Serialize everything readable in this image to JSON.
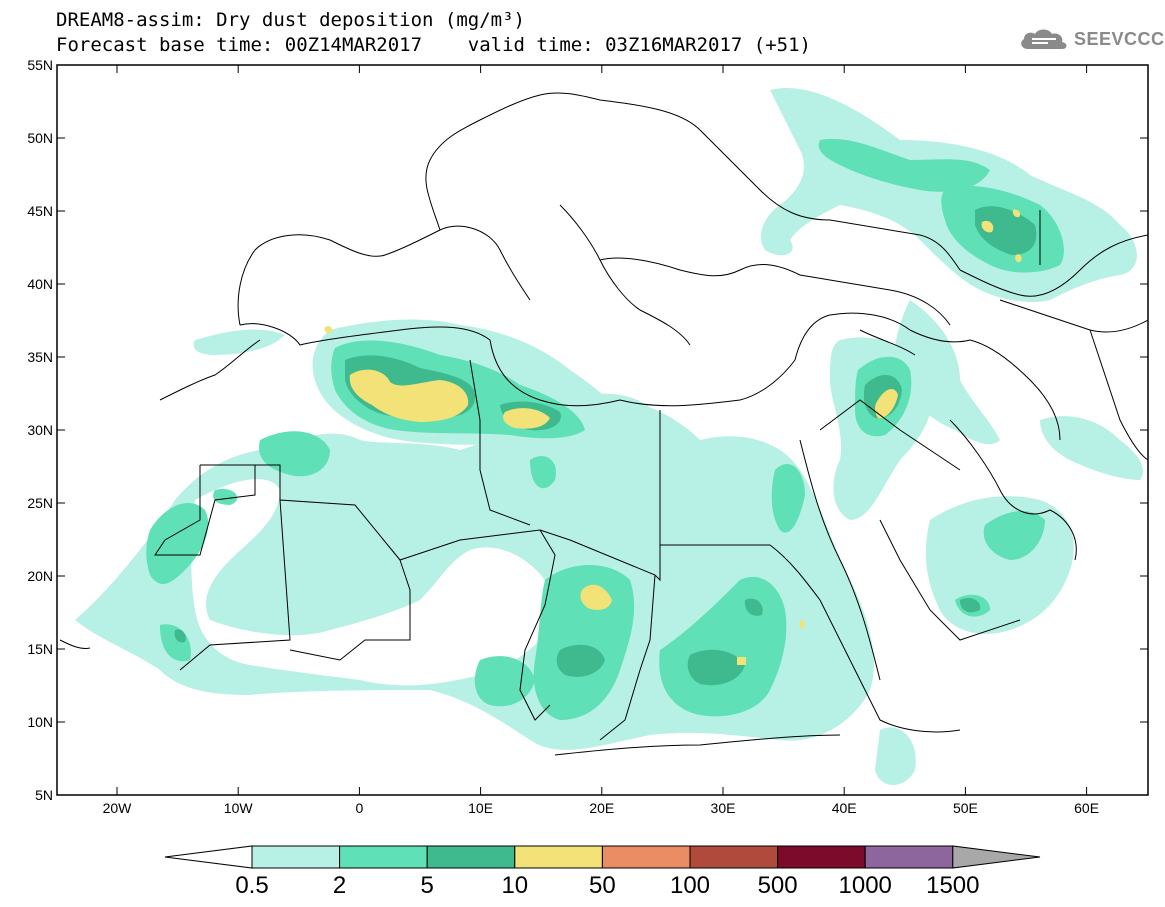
{
  "header": {
    "title_line1": "DREAM8-assim: Dry dust deposition (mg/m³)",
    "title_line2": "Forecast base time: 00Z14MAR2017    valid time: 03Z16MAR2017 (+51)",
    "logo_text": "SEEVCCC"
  },
  "map": {
    "lat_labels": [
      "55N",
      "50N",
      "45N",
      "40N",
      "35N",
      "30N",
      "25N",
      "20N",
      "15N",
      "10N",
      "5N"
    ],
    "lon_labels": [
      "20W",
      "10W",
      "0",
      "10E",
      "20E",
      "30E",
      "40E",
      "50E",
      "60E"
    ]
  },
  "colorbar": {
    "levels": [
      "0.5",
      "2",
      "5",
      "10",
      "50",
      "100",
      "500",
      "1000",
      "1500"
    ],
    "colors": [
      "#b7f0e4",
      "#5fe0b6",
      "#3fb98e",
      "#f2e278",
      "#ea8d64",
      "#b04a3c",
      "#7c0a2a",
      "#8c669c"
    ],
    "under_color": "#ffffff",
    "over_color": "#a8a8a8"
  }
}
